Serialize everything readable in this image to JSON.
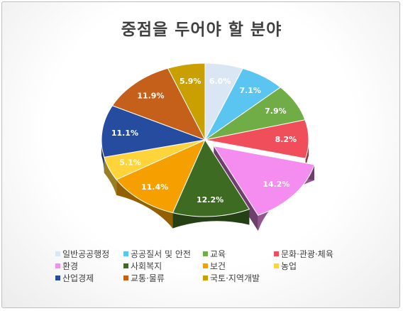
{
  "chart_data": {
    "type": "pie",
    "title": "중점을 두어야 할 분야",
    "legend_position": "bottom",
    "slices": [
      {
        "label": "일반공공행정",
        "value": 6.0,
        "display": "6.0%",
        "color": "#dbe6f4"
      },
      {
        "label": "공공질서 및 안전",
        "value": 7.1,
        "display": "7.1%",
        "color": "#5bc5f2"
      },
      {
        "label": "교육",
        "value": 7.9,
        "display": "7.9%",
        "color": "#70ad47"
      },
      {
        "label": "문화·관광·체육",
        "value": 8.2,
        "display": "8.2%",
        "color": "#f04e5a"
      },
      {
        "label": "환경",
        "value": 14.2,
        "display": "14.2%",
        "color": "#f58cf0",
        "exploded": true
      },
      {
        "label": "사회복지",
        "value": 12.2,
        "display": "12.2%",
        "color": "#3e6b22"
      },
      {
        "label": "보건",
        "value": 11.4,
        "display": "11.4%",
        "color": "#f5a000"
      },
      {
        "label": "농업",
        "value": 5.1,
        "display": "5.1%",
        "color": "#ffd43a"
      },
      {
        "label": "산업경제",
        "value": 11.1,
        "display": "11.1%",
        "color": "#254c9e"
      },
      {
        "label": "교통·물류",
        "value": 11.9,
        "display": "11.9%",
        "color": "#c5601b"
      },
      {
        "label": "국토·지역개발",
        "value": 5.9,
        "display": "5.9%",
        "color": "#c9a000"
      }
    ]
  }
}
